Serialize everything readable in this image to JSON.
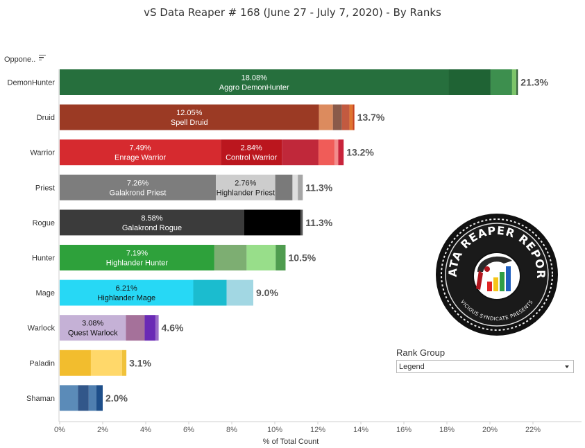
{
  "title": "vS Data Reaper #  168 (June 27 - July 7, 2020) - By Ranks",
  "opponent_header": "Oppone..",
  "rank_group": {
    "label": "Rank Group",
    "value": "Legend"
  },
  "logo": {
    "name": "data-reaper-report-logo",
    "text_top": "DATA REAPER REPORT",
    "text_bottom": "VICIOUS SYNDICATE PRESENTS"
  },
  "colors": {
    "axis": "#cfcfcf",
    "label": "#333333",
    "muted": "#555555"
  },
  "chart_data": {
    "type": "bar",
    "orientation": "horizontal",
    "stacked": true,
    "xlabel": "% of Total Count",
    "xlim": [
      0,
      22
    ],
    "xticks": [
      "0%",
      "2%",
      "4%",
      "6%",
      "8%",
      "10%",
      "12%",
      "14%",
      "16%",
      "18%",
      "20%",
      "22%"
    ],
    "grid": false,
    "categories": [
      "DemonHunter",
      "Druid",
      "Warrior",
      "Priest",
      "Rogue",
      "Hunter",
      "Mage",
      "Warlock",
      "Paladin",
      "Shaman"
    ],
    "totals": [
      "21.3%",
      "13.7%",
      "13.2%",
      "11.3%",
      "11.3%",
      "10.5%",
      "9.0%",
      "4.6%",
      "3.1%",
      "2.0%"
    ],
    "bars": [
      {
        "class": "DemonHunter",
        "segments": [
          {
            "value": 18.08,
            "color": "#266f3d",
            "pct": "18.08%",
            "name": "Aggro DemonHunter",
            "textColor": "#ffffff"
          },
          {
            "value": 1.95,
            "color": "#1f6334"
          },
          {
            "value": 1.0,
            "color": "#3d8f4e"
          },
          {
            "value": 0.2,
            "color": "#7cc46a"
          },
          {
            "value": 0.07,
            "color": "#2a5a30"
          }
        ]
      },
      {
        "class": "Druid",
        "segments": [
          {
            "value": 12.05,
            "color": "#9b3a24",
            "pct": "12.05%",
            "name": "Spell Druid",
            "textColor": "#ffffff"
          },
          {
            "value": 0.65,
            "color": "#dc8b5e"
          },
          {
            "value": 0.42,
            "color": "#8a5a4a"
          },
          {
            "value": 0.35,
            "color": "#c25a40"
          },
          {
            "value": 0.15,
            "color": "#e0742e"
          },
          {
            "value": 0.08,
            "color": "#c6421e"
          }
        ]
      },
      {
        "class": "Warrior",
        "segments": [
          {
            "value": 7.49,
            "color": "#d62a2f",
            "pct": "7.49%",
            "name": "Enrage Warrior",
            "textColor": "#ffffff"
          },
          {
            "value": 2.84,
            "color": "#bb161e",
            "pct": "2.84%",
            "name": "Control Warrior",
            "textColor": "#ffffff"
          },
          {
            "value": 1.7,
            "color": "#c0283a"
          },
          {
            "value": 0.75,
            "color": "#f05c58"
          },
          {
            "value": 0.17,
            "color": "#f28c8c"
          },
          {
            "value": 0.25,
            "color": "#c8243b"
          }
        ]
      },
      {
        "class": "Priest",
        "segments": [
          {
            "value": 7.26,
            "color": "#7d7d7d",
            "pct": "7.26%",
            "name": "Galakrond Priest",
            "textColor": "#ffffff"
          },
          {
            "value": 2.76,
            "color": "#cdcdcd",
            "pct": "2.76%",
            "name": "Highlander Priest",
            "textColor": "#222222"
          },
          {
            "value": 0.8,
            "color": "#7a7a7a"
          },
          {
            "value": 0.25,
            "color": "#dedede"
          },
          {
            "value": 0.23,
            "color": "#a6a6a6"
          }
        ]
      },
      {
        "class": "Rogue",
        "segments": [
          {
            "value": 8.58,
            "color": "#3b3b3b",
            "pct": "8.58%",
            "name": "Galakrond Rogue",
            "textColor": "#ffffff"
          },
          {
            "value": 2.62,
            "color": "#000000"
          },
          {
            "value": 0.1,
            "color": "#555555"
          }
        ]
      },
      {
        "class": "Hunter",
        "segments": [
          {
            "value": 7.19,
            "color": "#2ea13b",
            "pct": "7.19%",
            "name": "Highlander Hunter",
            "textColor": "#ffffff"
          },
          {
            "value": 1.5,
            "color": "#7dae72"
          },
          {
            "value": 1.35,
            "color": "#98de8a"
          },
          {
            "value": 0.46,
            "color": "#4f9c4f"
          }
        ]
      },
      {
        "class": "Mage",
        "segments": [
          {
            "value": 6.21,
            "color": "#27d8f5",
            "pct": "6.21%",
            "name": "Highlander Mage",
            "textColor": "#111111"
          },
          {
            "value": 1.55,
            "color": "#1bbccf"
          },
          {
            "value": 1.24,
            "color": "#a2d7e3"
          }
        ]
      },
      {
        "class": "Warlock",
        "segments": [
          {
            "value": 3.08,
            "color": "#c5b1d6",
            "pct": "3.08%",
            "name": "Quest Warlock",
            "textColor": "#111111"
          },
          {
            "value": 0.87,
            "color": "#a5719a"
          },
          {
            "value": 0.5,
            "color": "#6a2ab5"
          },
          {
            "value": 0.15,
            "color": "#9a6cc8"
          }
        ]
      },
      {
        "class": "Paladin",
        "segments": [
          {
            "value": 1.45,
            "color": "#f2bd2e"
          },
          {
            "value": 1.45,
            "color": "#ffd86a"
          },
          {
            "value": 0.2,
            "color": "#f0c23a"
          }
        ]
      },
      {
        "class": "Shaman",
        "segments": [
          {
            "value": 0.85,
            "color": "#5b8bb8"
          },
          {
            "value": 0.5,
            "color": "#32578a"
          },
          {
            "value": 0.35,
            "color": "#4f7fb0"
          },
          {
            "value": 0.3,
            "color": "#1e4f8a"
          }
        ]
      }
    ]
  }
}
